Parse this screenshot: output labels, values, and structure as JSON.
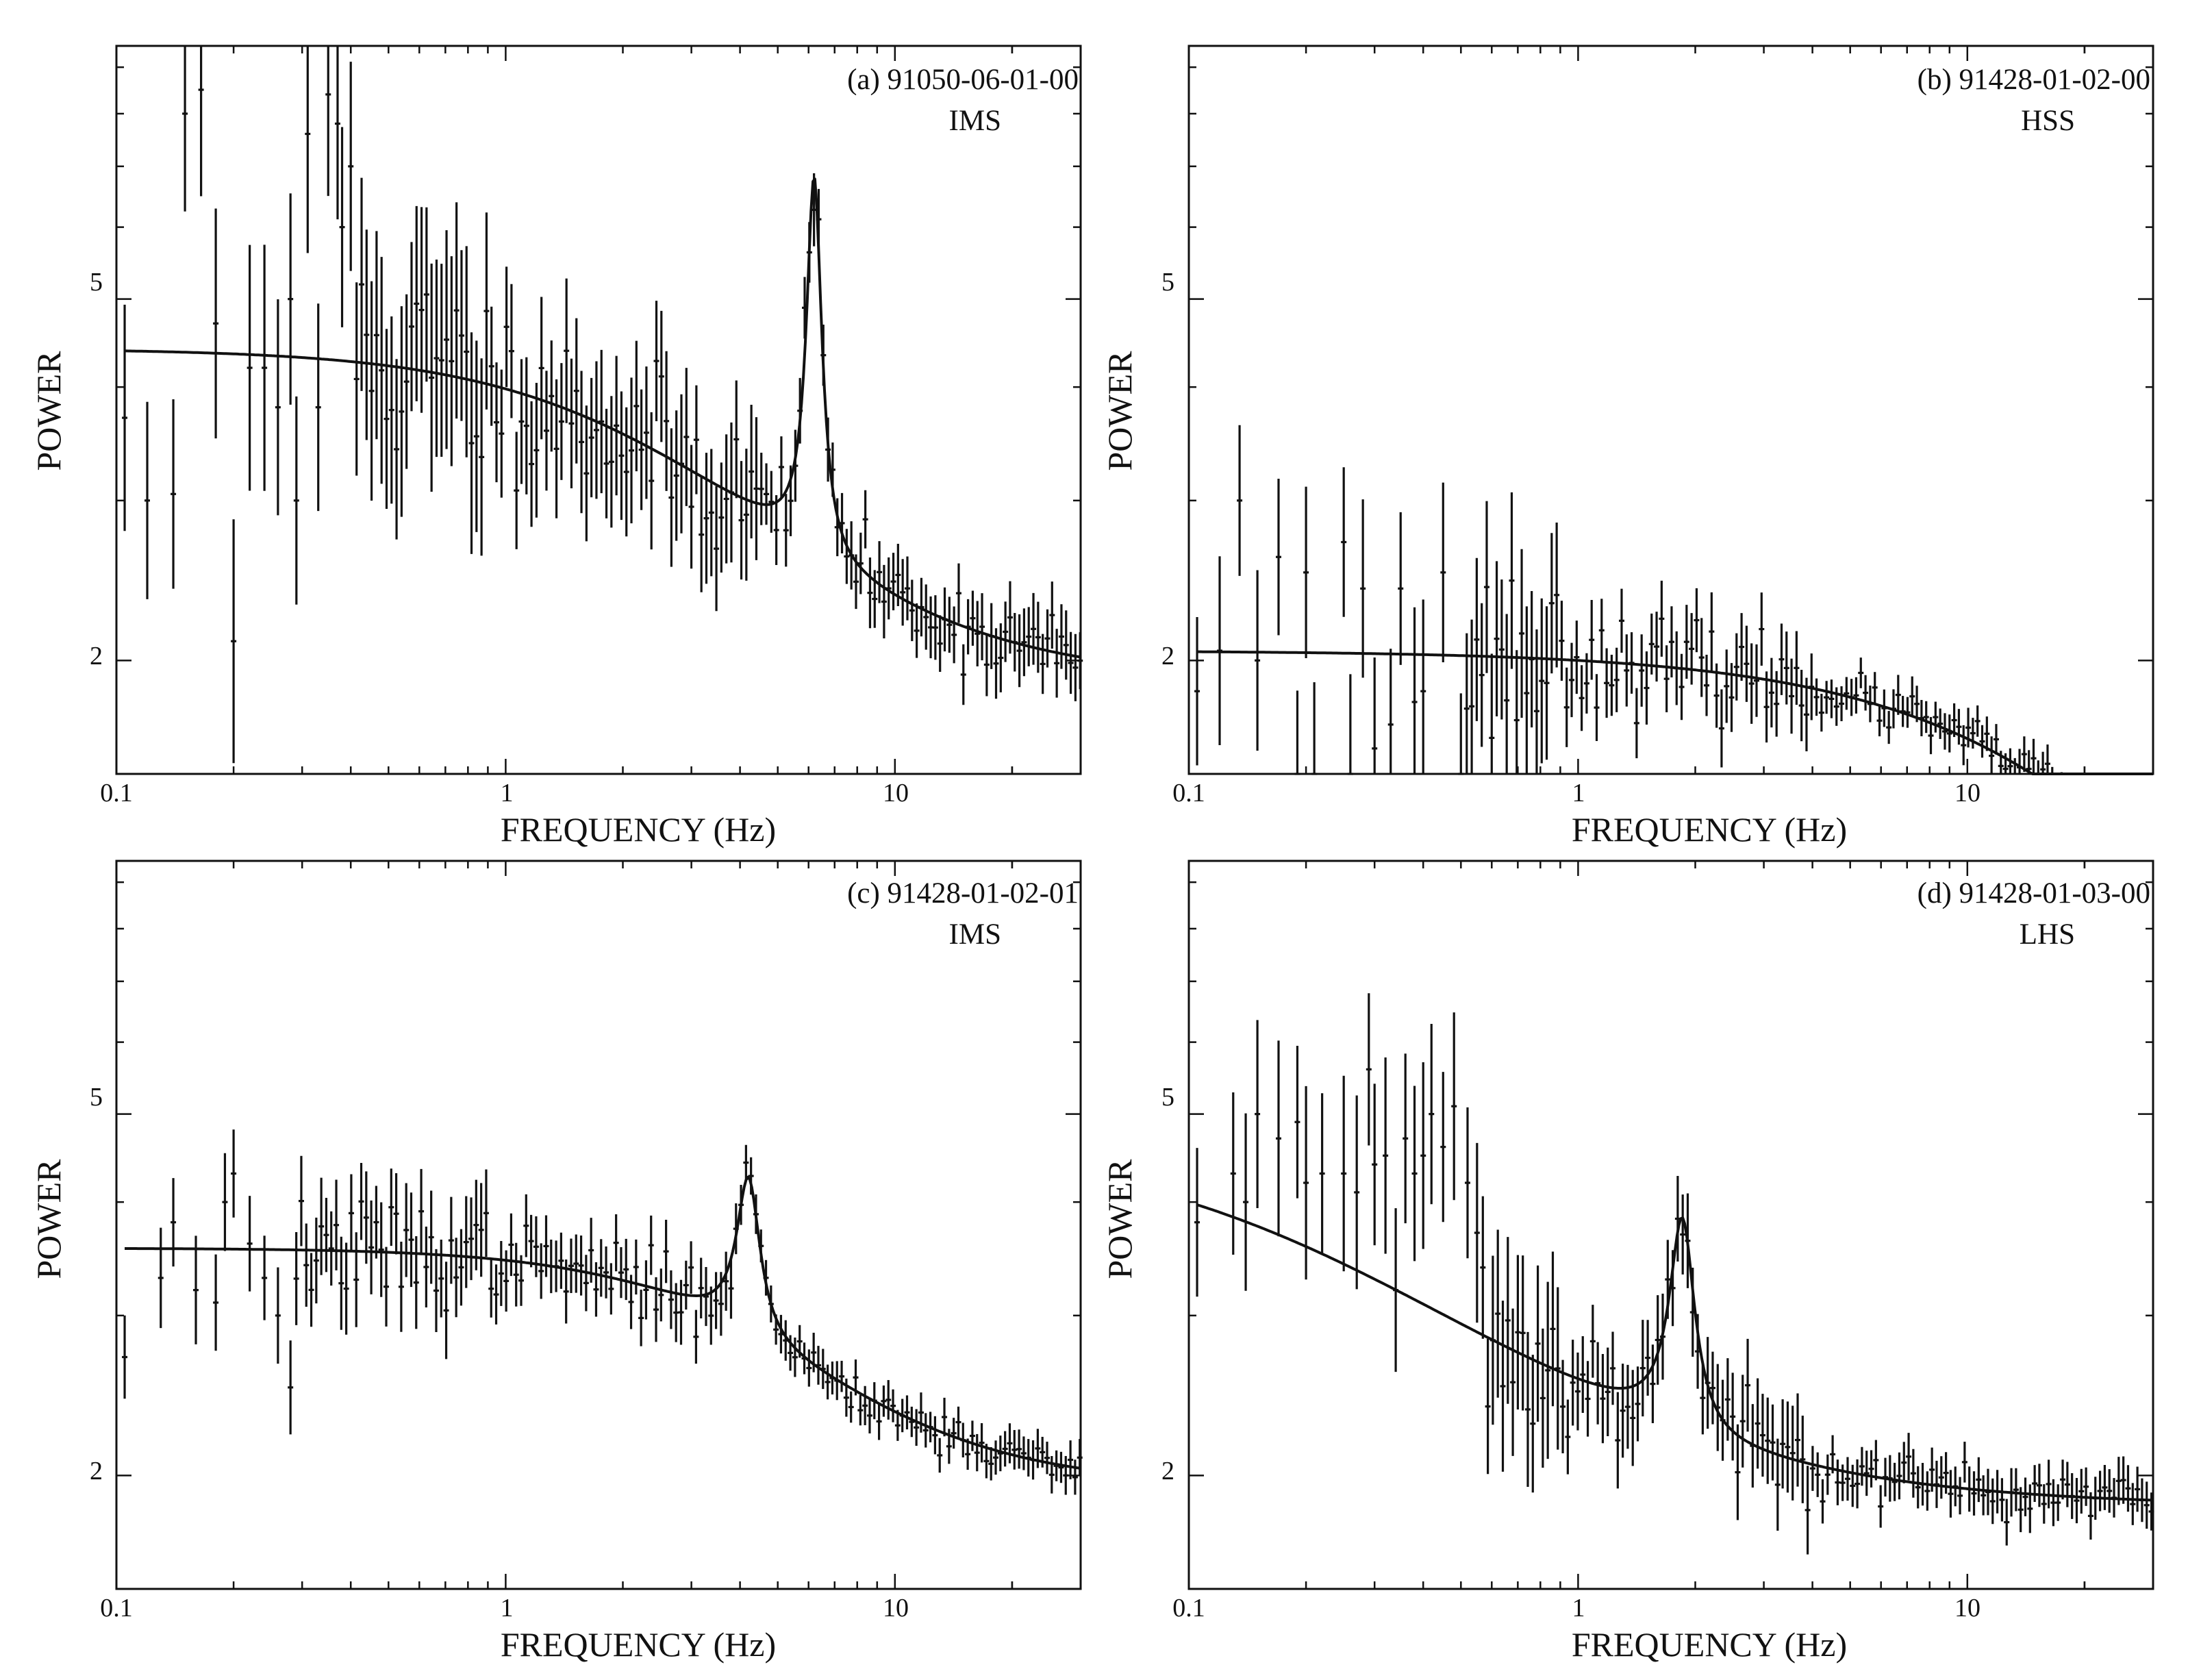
{
  "figure": {
    "colors": {
      "ink": "#111111",
      "background": "#ffffff"
    }
  },
  "chart_data": [
    {
      "type": "scatter",
      "panel_label": "(a) 91050-06-01-00",
      "state_label": "IMS",
      "xlabel": "FREQUENCY  (Hz)",
      "ylabel": "POWER",
      "xscale": "log",
      "yscale": "log",
      "xlim": [
        0.1,
        30
      ],
      "ylim": [
        1.5,
        9.5
      ],
      "xticklabels": [
        "0.1",
        "1",
        "10"
      ],
      "yticklabels": [
        "5",
        "2"
      ],
      "model": {
        "plateau": 4.4,
        "break": 3.2,
        "slope": 1.35,
        "floor": 1.9,
        "qpo_freq": 6.2,
        "qpo_width": 0.55,
        "qpo_amp": 4.2
      },
      "noise": {
        "amp": [
          0.28,
          0.18,
          0.09
        ],
        "edge": [
          0.9,
          4.5
        ],
        "seed": 11
      },
      "points": [
        [
          0.105,
          3.7
        ],
        [
          0.12,
          3.0
        ],
        [
          0.14,
          3.05
        ],
        [
          0.15,
          8.0
        ],
        [
          0.165,
          8.5
        ],
        [
          0.18,
          4.7
        ],
        [
          0.2,
          2.1
        ],
        [
          0.22,
          4.2
        ],
        [
          0.24,
          4.2
        ],
        [
          0.26,
          3.8
        ],
        [
          0.28,
          5.0
        ],
        [
          0.29,
          3.0
        ],
        [
          0.31,
          7.6
        ],
        [
          0.33,
          3.8
        ],
        [
          0.35,
          8.4
        ],
        [
          0.37,
          7.8
        ],
        [
          0.38,
          6.0
        ],
        [
          0.4,
          7.0
        ]
      ]
    },
    {
      "type": "scatter",
      "panel_label": "(b) 91428-01-02-00",
      "state_label": "HSS",
      "xlabel": "FREQUENCY  (Hz)",
      "ylabel": "POWER",
      "xscale": "log",
      "yscale": "log",
      "xlim": [
        0.1,
        30
      ],
      "ylim": [
        1.5,
        9.5
      ],
      "xticklabels": [
        "0.1",
        "1",
        "10"
      ],
      "yticklabels": [
        "5",
        "2"
      ],
      "model": {
        "plateau": 2.05,
        "break": 40,
        "slope": 1.0,
        "floor": 0.0,
        "qpo_freq": 0,
        "qpo_width": 1,
        "qpo_amp": 0
      },
      "noise": {
        "amp": [
          0.22,
          0.1,
          0.05
        ],
        "edge": [
          0.9,
          4.0
        ],
        "seed": 23
      },
      "points": [
        [
          0.105,
          1.85
        ],
        [
          0.12,
          2.05
        ],
        [
          0.135,
          3.0
        ],
        [
          0.15,
          2.0
        ],
        [
          0.17,
          2.6
        ],
        [
          0.19,
          1.5
        ],
        [
          0.2,
          2.5
        ],
        [
          0.21,
          1.5
        ],
        [
          0.25,
          2.7
        ],
        [
          0.26,
          1.5
        ],
        [
          0.28,
          2.4
        ],
        [
          0.3,
          1.6
        ],
        [
          0.33,
          1.7
        ],
        [
          0.35,
          2.4
        ],
        [
          0.38,
          1.8
        ],
        [
          0.4,
          1.85
        ],
        [
          0.45,
          2.5
        ],
        [
          0.5,
          1.5
        ]
      ]
    },
    {
      "type": "scatter",
      "panel_label": "(c) 91428-01-02-01",
      "state_label": "IMS",
      "xlabel": "FREQUENCY  (Hz)",
      "ylabel": "POWER",
      "xscale": "log",
      "yscale": "log",
      "xlim": [
        0.1,
        30
      ],
      "ylim": [
        1.5,
        9.5
      ],
      "xticklabels": [
        "0.1",
        "1",
        "10"
      ],
      "yticklabels": [
        "5",
        "2"
      ],
      "model": {
        "plateau": 3.55,
        "break": 5.0,
        "slope": 1.6,
        "floor": 1.95,
        "qpo_freq": 4.2,
        "qpo_width": 0.65,
        "qpo_amp": 1.4
      },
      "noise": {
        "amp": [
          0.12,
          0.08,
          0.05
        ],
        "edge": [
          0.9,
          4.0
        ],
        "seed": 37
      },
      "points": [
        [
          0.105,
          2.7
        ],
        [
          0.13,
          3.3
        ],
        [
          0.14,
          3.8
        ],
        [
          0.16,
          3.2
        ],
        [
          0.18,
          3.1
        ],
        [
          0.19,
          4.0
        ],
        [
          0.2,
          4.3
        ],
        [
          0.22,
          3.6
        ],
        [
          0.24,
          3.3
        ],
        [
          0.26,
          3.0
        ],
        [
          0.28,
          2.5
        ]
      ]
    },
    {
      "type": "scatter",
      "panel_label": "(d) 91428-01-03-00",
      "state_label": "LHS",
      "xlabel": "FREQUENCY  (Hz)",
      "ylabel": "POWER",
      "xscale": "log",
      "yscale": "log",
      "xlim": [
        0.1,
        30
      ],
      "ylim": [
        1.5,
        9.5
      ],
      "xticklabels": [
        "0.1",
        "1",
        "10"
      ],
      "yticklabels": [
        "5",
        "2"
      ],
      "model": {
        "plateau": 4.7,
        "break": 0.3,
        "slope": 1.0,
        "floor": 1.85,
        "qpo_freq": 1.85,
        "qpo_width": 0.3,
        "qpo_amp": 1.6,
        "anchor": 0.1
      },
      "noise": {
        "amp": [
          0.22,
          0.12,
          0.06
        ],
        "edge": [
          0.9,
          4.0
        ],
        "seed": 53
      },
      "points": [
        [
          0.105,
          3.8
        ],
        [
          0.13,
          4.3
        ],
        [
          0.14,
          4.0
        ],
        [
          0.15,
          5.0
        ],
        [
          0.17,
          4.7
        ],
        [
          0.19,
          4.9
        ],
        [
          0.2,
          4.2
        ],
        [
          0.22,
          4.3
        ],
        [
          0.25,
          4.3
        ],
        [
          0.27,
          4.1
        ],
        [
          0.29,
          5.6
        ],
        [
          0.3,
          4.4
        ],
        [
          0.32,
          4.5
        ],
        [
          0.34,
          3.2
        ],
        [
          0.36,
          4.7
        ],
        [
          0.38,
          4.3
        ],
        [
          0.4,
          4.5
        ],
        [
          0.42,
          5.0
        ],
        [
          0.45,
          4.6
        ],
        [
          0.48,
          5.1
        ],
        [
          0.52,
          4.2
        ],
        [
          0.55,
          3.7
        ]
      ]
    }
  ]
}
